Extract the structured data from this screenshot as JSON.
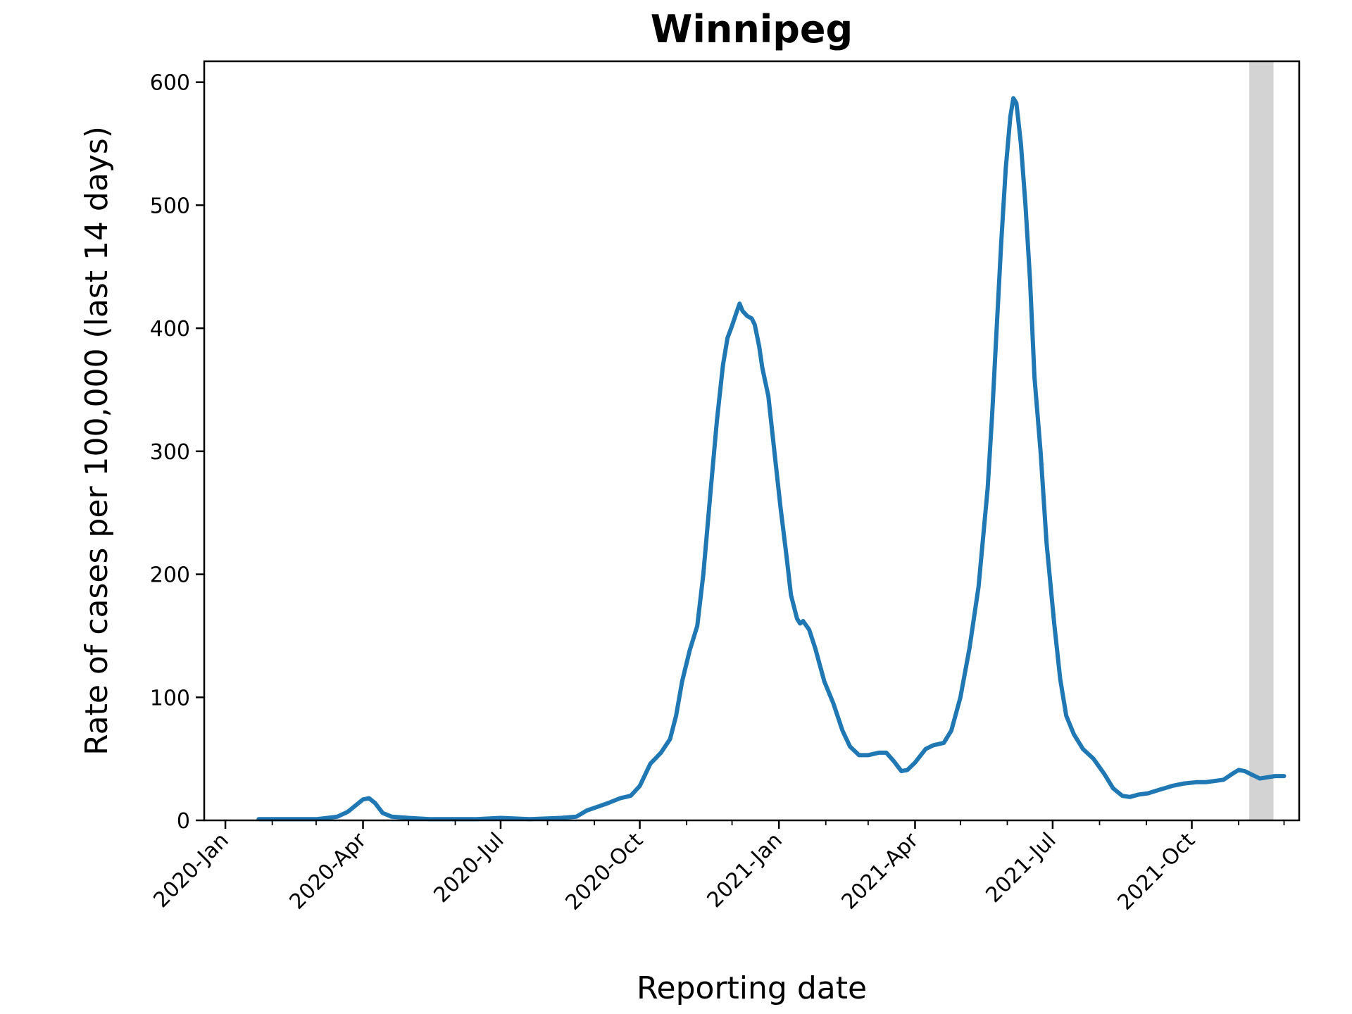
{
  "chart_data": {
    "type": "line",
    "title": "Winnipeg",
    "xlabel": "Reporting date",
    "ylabel": "Rate of cases per 100,000 (last 14 days)",
    "xlim": [
      "2019-12-18",
      "2021-12-11"
    ],
    "ylim": [
      0,
      617
    ],
    "y_ticks": [
      0,
      100,
      200,
      300,
      400,
      500,
      600
    ],
    "x_major_ticks": [
      {
        "date": "2020-01-01",
        "label": "2020-Jan"
      },
      {
        "date": "2020-04-01",
        "label": "2020-Apr"
      },
      {
        "date": "2020-07-01",
        "label": "2020-Jul"
      },
      {
        "date": "2020-10-01",
        "label": "2020-Oct"
      },
      {
        "date": "2021-01-01",
        "label": "2021-Jan"
      },
      {
        "date": "2021-04-01",
        "label": "2021-Apr"
      },
      {
        "date": "2021-07-01",
        "label": "2021-Jul"
      },
      {
        "date": "2021-10-01",
        "label": "2021-Oct"
      }
    ],
    "x_minor_ticks": [
      "2020-02-01",
      "2020-03-01",
      "2020-05-01",
      "2020-06-01",
      "2020-08-01",
      "2020-09-01",
      "2020-11-01",
      "2020-12-01",
      "2021-02-01",
      "2021-03-01",
      "2021-05-01",
      "2021-06-01",
      "2021-08-01",
      "2021-09-01",
      "2021-11-01",
      "2021-12-01"
    ],
    "grid": false,
    "shaded_region": {
      "from": "2021-11-08",
      "to": "2021-11-24",
      "color": "#d3d3d3"
    },
    "series": [
      {
        "color": "#1f77b4",
        "points": [
          [
            "2020-01-23",
            1
          ],
          [
            "2020-03-01",
            1
          ],
          [
            "2020-03-15",
            3
          ],
          [
            "2020-03-22",
            7
          ],
          [
            "2020-03-28",
            13
          ],
          [
            "2020-04-01",
            17
          ],
          [
            "2020-04-05",
            18
          ],
          [
            "2020-04-09",
            14
          ],
          [
            "2020-04-14",
            6
          ],
          [
            "2020-04-20",
            3
          ],
          [
            "2020-05-01",
            2
          ],
          [
            "2020-05-15",
            1
          ],
          [
            "2020-06-15",
            1
          ],
          [
            "2020-07-01",
            2
          ],
          [
            "2020-07-20",
            1
          ],
          [
            "2020-08-10",
            2
          ],
          [
            "2020-08-20",
            3
          ],
          [
            "2020-08-27",
            8
          ],
          [
            "2020-09-03",
            11
          ],
          [
            "2020-09-10",
            14
          ],
          [
            "2020-09-18",
            18
          ],
          [
            "2020-09-25",
            20
          ],
          [
            "2020-10-01",
            28
          ],
          [
            "2020-10-08",
            46
          ],
          [
            "2020-10-15",
            55
          ],
          [
            "2020-10-21",
            66
          ],
          [
            "2020-10-25",
            85
          ],
          [
            "2020-10-29",
            113
          ],
          [
            "2020-11-03",
            138
          ],
          [
            "2020-11-08",
            158
          ],
          [
            "2020-11-12",
            200
          ],
          [
            "2020-11-17",
            270
          ],
          [
            "2020-11-21",
            325
          ],
          [
            "2020-11-25",
            370
          ],
          [
            "2020-11-28",
            392
          ],
          [
            "2020-12-01",
            402
          ],
          [
            "2020-12-04",
            413
          ],
          [
            "2020-12-06",
            420
          ],
          [
            "2020-12-08",
            414
          ],
          [
            "2020-12-11",
            410
          ],
          [
            "2020-12-14",
            408
          ],
          [
            "2020-12-16",
            403
          ],
          [
            "2020-12-19",
            385
          ],
          [
            "2020-12-21",
            368
          ],
          [
            "2020-12-25",
            345
          ],
          [
            "2020-12-29",
            300
          ],
          [
            "2021-01-02",
            255
          ],
          [
            "2021-01-06",
            215
          ],
          [
            "2021-01-09",
            183
          ],
          [
            "2021-01-13",
            164
          ],
          [
            "2021-01-15",
            160
          ],
          [
            "2021-01-17",
            162
          ],
          [
            "2021-01-21",
            155
          ],
          [
            "2021-01-25",
            140
          ],
          [
            "2021-01-31",
            113
          ],
          [
            "2021-02-06",
            95
          ],
          [
            "2021-02-12",
            73
          ],
          [
            "2021-02-17",
            60
          ],
          [
            "2021-02-23",
            53
          ],
          [
            "2021-03-01",
            53
          ],
          [
            "2021-03-08",
            55
          ],
          [
            "2021-03-13",
            55
          ],
          [
            "2021-03-18",
            48
          ],
          [
            "2021-03-23",
            40
          ],
          [
            "2021-03-27",
            41
          ],
          [
            "2021-04-01",
            47
          ],
          [
            "2021-04-08",
            58
          ],
          [
            "2021-04-13",
            61
          ],
          [
            "2021-04-20",
            63
          ],
          [
            "2021-04-25",
            73
          ],
          [
            "2021-05-01",
            100
          ],
          [
            "2021-05-07",
            140
          ],
          [
            "2021-05-13",
            190
          ],
          [
            "2021-05-19",
            270
          ],
          [
            "2021-05-22",
            330
          ],
          [
            "2021-05-25",
            400
          ],
          [
            "2021-05-28",
            470
          ],
          [
            "2021-05-31",
            530
          ],
          [
            "2021-06-03",
            572
          ],
          [
            "2021-06-05",
            587
          ],
          [
            "2021-06-07",
            583
          ],
          [
            "2021-06-10",
            550
          ],
          [
            "2021-06-13",
            500
          ],
          [
            "2021-06-16",
            440
          ],
          [
            "2021-06-19",
            360
          ],
          [
            "2021-06-23",
            300
          ],
          [
            "2021-06-27",
            225
          ],
          [
            "2021-07-02",
            160
          ],
          [
            "2021-07-06",
            115
          ],
          [
            "2021-07-10",
            85
          ],
          [
            "2021-07-15",
            70
          ],
          [
            "2021-07-21",
            58
          ],
          [
            "2021-07-28",
            50
          ],
          [
            "2021-08-04",
            38
          ],
          [
            "2021-08-10",
            26
          ],
          [
            "2021-08-16",
            20
          ],
          [
            "2021-08-21",
            19
          ],
          [
            "2021-08-27",
            21
          ],
          [
            "2021-09-02",
            22
          ],
          [
            "2021-09-10",
            25
          ],
          [
            "2021-09-18",
            28
          ],
          [
            "2021-09-26",
            30
          ],
          [
            "2021-10-04",
            31
          ],
          [
            "2021-10-10",
            31
          ],
          [
            "2021-10-16",
            32
          ],
          [
            "2021-10-22",
            33
          ],
          [
            "2021-10-28",
            38
          ],
          [
            "2021-11-01",
            41
          ],
          [
            "2021-11-05",
            40
          ],
          [
            "2021-11-10",
            37
          ],
          [
            "2021-11-15",
            34
          ],
          [
            "2021-11-20",
            35
          ],
          [
            "2021-11-25",
            36
          ],
          [
            "2021-12-01",
            36
          ]
        ]
      }
    ]
  }
}
